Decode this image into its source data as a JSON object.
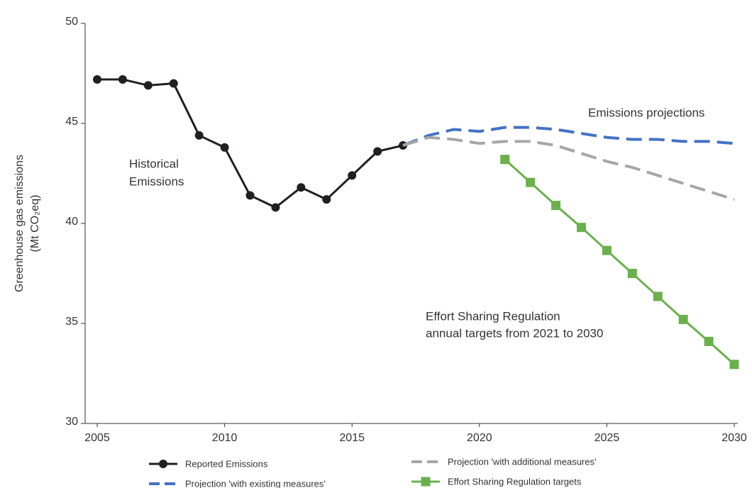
{
  "chart_data": {
    "type": "line",
    "y_label_lines": [
      "Greenhouse gas emissions",
      "(Mt CO₂eq)"
    ],
    "annotations": {
      "historical": [
        "Historical",
        "Emissions"
      ],
      "projections": "Emissions projections",
      "esr": [
        "Effort Sharing Regulation",
        "annual targets from 2021 to 2030"
      ]
    },
    "xlim": [
      2005,
      2030
    ],
    "xticks": [
      2005,
      2010,
      2015,
      2020,
      2025,
      2030
    ],
    "ylim": [
      30,
      50
    ],
    "yticks": [
      30,
      35,
      40,
      45,
      50
    ],
    "series": [
      {
        "name": "Reported Emissions",
        "color": "#231f20",
        "style": "solid",
        "marker": "circle",
        "x": [
          2005,
          2006,
          2007,
          2008,
          2009,
          2010,
          2011,
          2012,
          2013,
          2014,
          2015,
          2016,
          2017
        ],
        "values": [
          47.2,
          47.2,
          46.9,
          47.0,
          44.4,
          43.8,
          41.4,
          40.8,
          41.8,
          41.2,
          42.4,
          43.6,
          43.9
        ]
      },
      {
        "name": "Projection 'with existing measures'",
        "color": "#4472c4",
        "style": "dashed",
        "marker": "none",
        "x": [
          2017,
          2018,
          2019,
          2020,
          2021,
          2022,
          2023,
          2024,
          2025,
          2026,
          2027,
          2028,
          2029,
          2030
        ],
        "values": [
          43.9,
          44.4,
          44.7,
          44.6,
          44.8,
          44.8,
          44.7,
          44.5,
          44.3,
          44.2,
          44.2,
          44.1,
          44.1,
          44.0
        ]
      },
      {
        "name": "Projection 'with additional measures'",
        "color": "#a6a6a6",
        "style": "dashed",
        "marker": "none",
        "x": [
          2017,
          2018,
          2019,
          2020,
          2021,
          2022,
          2023,
          2024,
          2025,
          2026,
          2027,
          2028,
          2029,
          2030
        ],
        "values": [
          43.9,
          44.3,
          44.2,
          44.0,
          44.1,
          44.1,
          43.9,
          43.5,
          43.1,
          42.8,
          42.4,
          42.0,
          41.6,
          41.2
        ]
      },
      {
        "name": "Effort Sharing Regulation targets",
        "color": "#6ab04c",
        "style": "solid",
        "marker": "square",
        "x": [
          2021,
          2022,
          2023,
          2024,
          2025,
          2026,
          2027,
          2028,
          2029,
          2030
        ],
        "values": [
          43.2,
          42.05,
          40.9,
          39.8,
          38.65,
          37.5,
          36.35,
          35.2,
          34.1,
          32.95
        ]
      }
    ]
  }
}
